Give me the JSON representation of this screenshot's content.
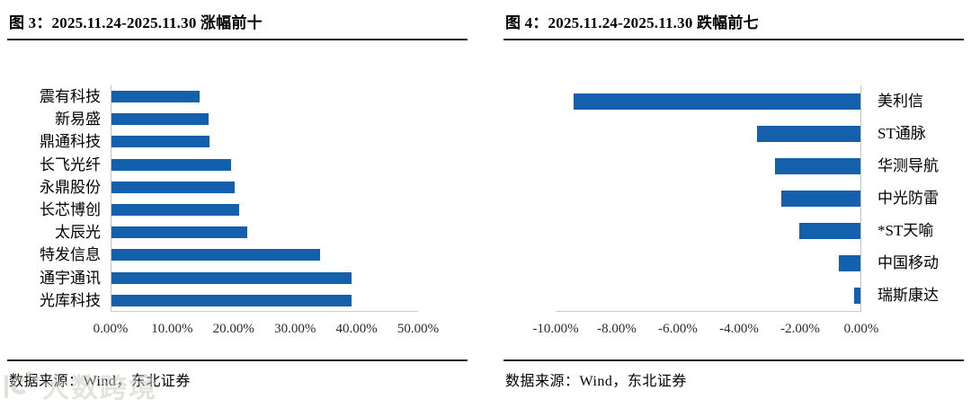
{
  "chart_data": [
    {
      "type": "bar",
      "orientation": "horizontal",
      "title": "图 3：2025.11.24-2025.11.30 涨幅前十",
      "categories": [
        "震有科技",
        "新易盛",
        "鼎通科技",
        "长飞光纤",
        "永鼎股份",
        "长芯博创",
        "太辰光",
        "特发信息",
        "通宇通讯",
        "光库科技"
      ],
      "values": [
        14.4,
        15.9,
        16.0,
        19.5,
        20.1,
        20.8,
        22.1,
        34.0,
        39.1,
        39.2
      ],
      "unit": "%",
      "value_axis": "x",
      "xlim": [
        0,
        50
      ],
      "x_ticks": [
        "0.00%",
        "10.00%",
        "20.00%",
        "30.00%",
        "40.00%",
        "50.00%"
      ],
      "labels_side": "left",
      "grid": false,
      "legend": "none",
      "bar_color": "#1560AC",
      "source_note": "数据来源：Wind，东北证券"
    },
    {
      "type": "bar",
      "orientation": "horizontal",
      "title": "图 4：2025.11.24-2025.11.30 跌幅前七",
      "categories": [
        "美利信",
        "ST通脉",
        "华测导航",
        "中光防雷",
        "*ST天喻",
        "中国移动",
        "瑞斯康达"
      ],
      "values": [
        -9.4,
        -3.4,
        -2.8,
        -2.6,
        -2.0,
        -0.7,
        -0.2
      ],
      "unit": "%",
      "value_axis": "x",
      "xlim": [
        -10,
        0
      ],
      "x_ticks": [
        "-10.00%",
        "-8.00%",
        "-6.00%",
        "-4.00%",
        "-2.00%",
        "0.00%"
      ],
      "labels_side": "right",
      "grid": false,
      "legend": "none",
      "bar_color": "#1560AC",
      "source_note": "数据来源：Wind，东北证券"
    }
  ],
  "watermark": {
    "text": "大数跨境",
    "logo_icon": "dashu-crossborder-logo"
  }
}
